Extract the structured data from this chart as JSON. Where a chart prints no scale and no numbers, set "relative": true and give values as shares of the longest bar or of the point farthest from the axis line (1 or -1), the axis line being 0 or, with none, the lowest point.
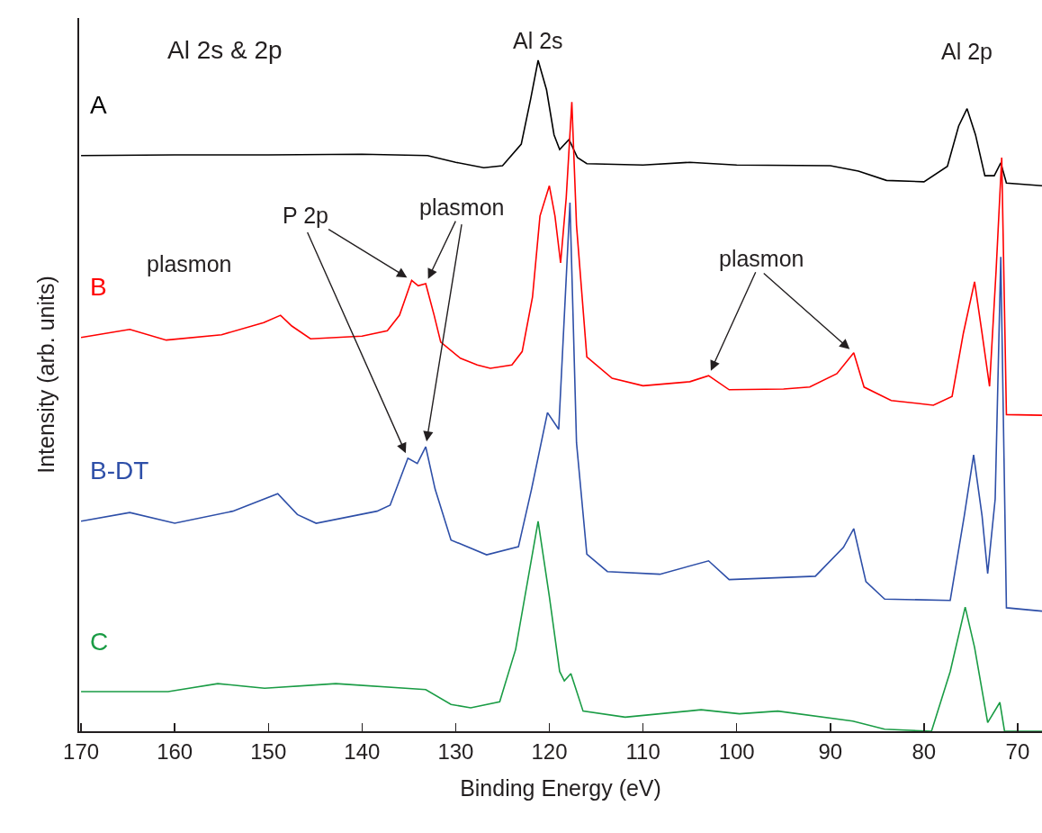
{
  "chart_data": {
    "type": "line",
    "relative": true,
    "xlabel": "Binding Energy (eV)",
    "ylabel": "Intensity (arb. units)",
    "xlim": [
      170.2,
      67.4
    ],
    "xticks": [
      170,
      160,
      150,
      140,
      130,
      120,
      110,
      100,
      90,
      80,
      70
    ],
    "marker": "none",
    "line_style": "solid",
    "legend": false,
    "grid": false,
    "annotations": [
      "Al 2s & 2p",
      {
        "text": "Al 2s",
        "x": 121.2,
        "y": 1.0
      },
      {
        "text": "Al 2p",
        "x": 75.4,
        "y": 0.928
      },
      "plasmon",
      {
        "text": "P 2p",
        "x": 134.7,
        "y": 0.672
      },
      {
        "text": "plasmon",
        "x": 133.2,
        "y": 0.667
      },
      {
        "text": "plasmon",
        "x": 103.0,
        "y": 0.53
      }
    ],
    "series": [
      {
        "name": "A",
        "color": "#000000",
        "x": [
          170,
          160,
          150,
          140,
          133,
          130,
          127,
          125,
          123,
          122,
          121.2,
          120.3,
          119.5,
          118.9,
          117.9,
          117,
          116,
          110,
          105,
          100,
          90,
          87,
          84,
          80,
          77.5,
          76.3,
          75.4,
          74.5,
          73.5,
          72.5,
          71.8,
          71.2,
          67.4
        ],
        "values": [
          0.858,
          0.859,
          0.859,
          0.86,
          0.858,
          0.848,
          0.84,
          0.843,
          0.875,
          0.942,
          1.0,
          0.956,
          0.889,
          0.867,
          0.882,
          0.855,
          0.846,
          0.844,
          0.848,
          0.844,
          0.843,
          0.835,
          0.821,
          0.819,
          0.842,
          0.902,
          0.928,
          0.889,
          0.828,
          0.828,
          0.847,
          0.817,
          0.813
        ]
      },
      {
        "name": "B",
        "color": "#ff0000",
        "x": [
          170,
          164.8,
          160.9,
          155,
          150.5,
          148.7,
          147.5,
          145.5,
          140,
          137.3,
          136,
          134.7,
          134,
          133.2,
          132.3,
          131.6,
          129.5,
          127.7,
          126.3,
          124,
          122.9,
          121.8,
          121,
          120,
          119.4,
          118.8,
          118.2,
          117.6,
          117.1,
          116,
          113.3,
          110,
          105,
          103,
          100.8,
          95,
          92.2,
          89.3,
          87.5,
          86.4,
          83.5,
          79,
          77,
          75.8,
          74.6,
          73.8,
          73,
          72.3,
          71.7,
          71.2,
          67.4
        ],
        "values": [
          0.587,
          0.599,
          0.583,
          0.591,
          0.609,
          0.62,
          0.604,
          0.585,
          0.589,
          0.597,
          0.62,
          0.672,
          0.664,
          0.667,
          0.62,
          0.58,
          0.556,
          0.546,
          0.541,
          0.546,
          0.566,
          0.647,
          0.768,
          0.813,
          0.768,
          0.698,
          0.795,
          0.938,
          0.754,
          0.558,
          0.526,
          0.515,
          0.521,
          0.53,
          0.509,
          0.51,
          0.513,
          0.533,
          0.564,
          0.513,
          0.493,
          0.486,
          0.499,
          0.593,
          0.67,
          0.593,
          0.514,
          0.687,
          0.855,
          0.472,
          0.471
        ]
      },
      {
        "name": "B-DT",
        "color": "#2e4fa8",
        "x": [
          170,
          164.8,
          160,
          153.8,
          149,
          146.9,
          144.9,
          138.4,
          137,
          135.1,
          134.1,
          133.2,
          132.2,
          130.5,
          126.7,
          123.3,
          121.9,
          120.2,
          119,
          117.8,
          117.1,
          116,
          113.8,
          108.2,
          103,
          100.8,
          91.6,
          88.6,
          87.5,
          86.2,
          84.2,
          77.2,
          75.7,
          74.7,
          73.8,
          73.2,
          72.4,
          71.8,
          71.2,
          67.4
        ],
        "values": [
          0.313,
          0.326,
          0.31,
          0.328,
          0.354,
          0.323,
          0.31,
          0.328,
          0.337,
          0.407,
          0.399,
          0.424,
          0.361,
          0.285,
          0.263,
          0.275,
          0.361,
          0.475,
          0.45,
          0.788,
          0.43,
          0.264,
          0.238,
          0.234,
          0.254,
          0.226,
          0.231,
          0.274,
          0.302,
          0.223,
          0.197,
          0.195,
          0.321,
          0.412,
          0.321,
          0.235,
          0.346,
          0.707,
          0.184,
          0.179
        ]
      },
      {
        "name": "C",
        "color": "#1a9c45",
        "x": [
          170,
          160.7,
          155.4,
          150.4,
          142.8,
          133.2,
          130.5,
          128.4,
          125.3,
          123.6,
          121.2,
          120,
          118.9,
          118.4,
          117.7,
          116.4,
          111.9,
          103.8,
          99.7,
          95.6,
          87.6,
          84.2,
          79.2,
          77.2,
          75.6,
          74.6,
          73.2,
          71.9,
          71.4,
          67.4
        ],
        "values": [
          0.059,
          0.059,
          0.071,
          0.064,
          0.071,
          0.062,
          0.04,
          0.035,
          0.044,
          0.122,
          0.313,
          0.201,
          0.089,
          0.075,
          0.086,
          0.03,
          0.021,
          0.032,
          0.026,
          0.03,
          0.015,
          0.003,
          0.0,
          0.089,
          0.185,
          0.125,
          0.013,
          0.043,
          0.0,
          0.0
        ]
      }
    ]
  }
}
